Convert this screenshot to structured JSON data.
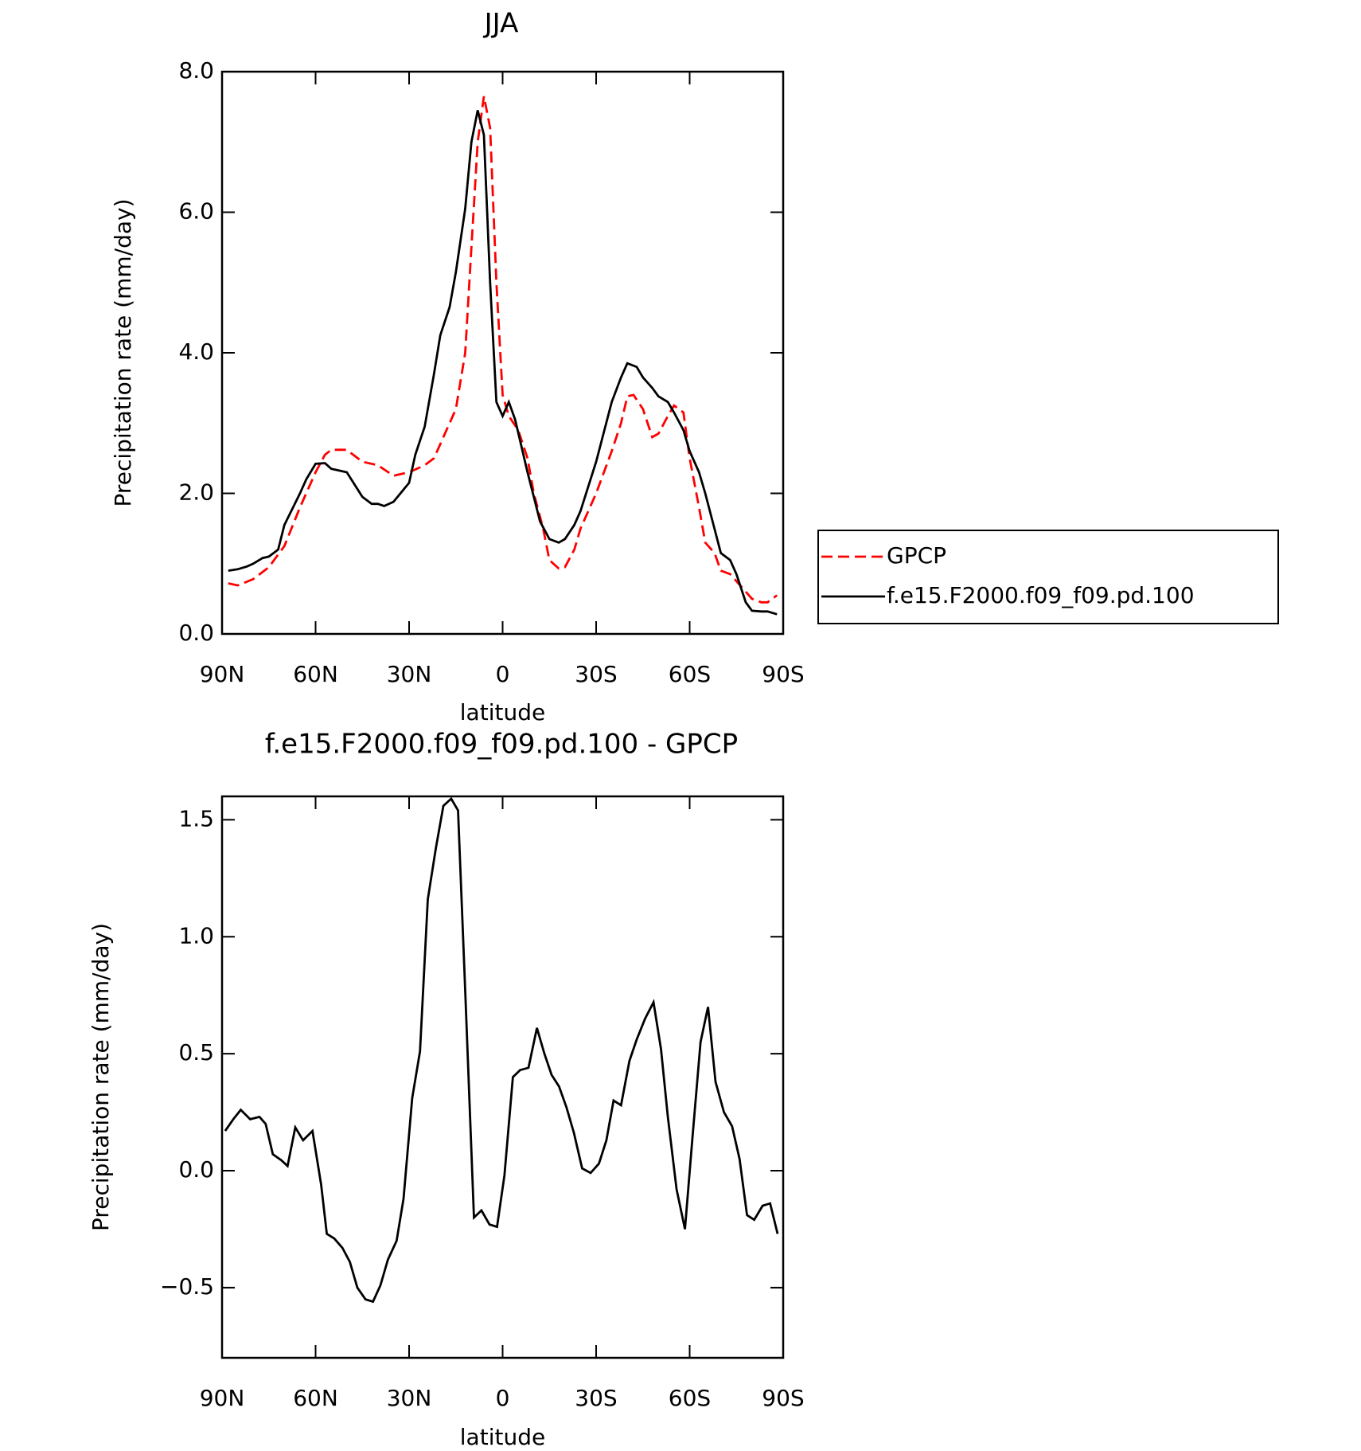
{
  "chart_data": [
    {
      "type": "line",
      "title": "JJA",
      "xlabel": "latitude",
      "ylabel": "Precipitation rate (mm/day)",
      "xlim": [
        90,
        -90
      ],
      "xticks": [
        {
          "value": 90,
          "label": "90N"
        },
        {
          "value": 60,
          "label": "60N"
        },
        {
          "value": 30,
          "label": "30N"
        },
        0,
        {
          "value": -30,
          "label": "30S"
        },
        {
          "value": -60,
          "label": "60S"
        },
        {
          "value": -90,
          "label": "90S"
        }
      ],
      "ylim": [
        0,
        8
      ],
      "yticks": [
        {
          "value": 0,
          "label": "0.0"
        },
        {
          "value": 2,
          "label": "2.0"
        },
        {
          "value": 4,
          "label": "4.0"
        },
        {
          "value": 6,
          "label": "6.0"
        },
        {
          "value": 8,
          "label": "8.0"
        }
      ],
      "legend": "right",
      "series": [
        {
          "name": "GPCP",
          "color": "#ff0000",
          "dashed": true,
          "x": [
            88,
            85,
            80,
            75,
            70,
            65,
            60,
            57,
            55,
            50,
            45,
            40,
            35,
            30,
            25,
            22,
            18,
            15,
            12,
            10,
            8,
            6,
            4,
            2,
            0,
            -2,
            -5,
            -8,
            -10,
            -13,
            -15,
            -18,
            -20,
            -23,
            -25,
            -30,
            -35,
            -38,
            -40,
            -42,
            -45,
            -48,
            -50,
            -53,
            -55,
            -58,
            -60,
            -63,
            -65,
            -68,
            -70,
            -73,
            -75,
            -78,
            -80,
            -83,
            -85,
            -88
          ],
          "values": [
            0.72,
            0.69,
            0.78,
            0.95,
            1.25,
            1.8,
            2.3,
            2.55,
            2.62,
            2.62,
            2.45,
            2.4,
            2.25,
            2.3,
            2.4,
            2.5,
            2.9,
            3.2,
            4.0,
            5.5,
            7.0,
            7.65,
            7.2,
            5.0,
            3.4,
            3.1,
            2.9,
            2.5,
            2.0,
            1.5,
            1.05,
            0.93,
            0.95,
            1.2,
            1.5,
            2.0,
            2.6,
            3.0,
            3.38,
            3.4,
            3.2,
            2.8,
            2.85,
            3.1,
            3.25,
            3.15,
            2.5,
            1.8,
            1.3,
            1.15,
            0.9,
            0.85,
            0.75,
            0.6,
            0.5,
            0.45,
            0.45,
            0.55
          ]
        },
        {
          "name": "f.e15.F2000.f09_f09.pd.100",
          "color": "#000000",
          "dashed": false,
          "x": [
            88,
            85,
            82,
            80,
            77,
            75,
            72,
            70,
            65,
            63,
            60,
            57,
            55,
            52,
            50,
            45,
            42,
            40,
            38,
            35,
            30,
            28,
            25,
            22,
            20,
            17,
            15,
            12,
            10,
            8,
            6,
            4,
            2,
            0,
            -2,
            -4,
            -8,
            -10,
            -12,
            -15,
            -18,
            -20,
            -23,
            -25,
            -30,
            -35,
            -38,
            -40,
            -43,
            -45,
            -48,
            -50,
            -53,
            -55,
            -58,
            -60,
            -63,
            -65,
            -70,
            -73,
            -75,
            -78,
            -80,
            -83,
            -85,
            -88
          ],
          "values": [
            0.9,
            0.92,
            0.96,
            1.0,
            1.08,
            1.1,
            1.2,
            1.55,
            2.0,
            2.2,
            2.42,
            2.43,
            2.35,
            2.32,
            2.3,
            1.95,
            1.85,
            1.85,
            1.82,
            1.88,
            2.15,
            2.55,
            2.95,
            3.7,
            4.25,
            4.65,
            5.15,
            6.05,
            7.0,
            7.45,
            7.1,
            5.0,
            3.3,
            3.1,
            3.3,
            3.05,
            2.3,
            1.95,
            1.6,
            1.35,
            1.3,
            1.35,
            1.55,
            1.75,
            2.45,
            3.3,
            3.65,
            3.85,
            3.8,
            3.65,
            3.5,
            3.38,
            3.3,
            3.15,
            2.9,
            2.6,
            2.3,
            2.0,
            1.15,
            1.05,
            0.85,
            0.45,
            0.33,
            0.32,
            0.32,
            0.28
          ]
        }
      ]
    },
    {
      "type": "line",
      "title": "f.e15.F2000.f09_f09.pd.100 - GPCP",
      "xlabel": "latitude",
      "ylabel": "Precipitation rate (mm/day)",
      "xlim": [
        90,
        -90
      ],
      "xticks": [
        {
          "value": 90,
          "label": "90N"
        },
        {
          "value": 60,
          "label": "60N"
        },
        {
          "value": 30,
          "label": "30N"
        },
        0,
        {
          "value": -30,
          "label": "30S"
        },
        {
          "value": -60,
          "label": "60S"
        },
        {
          "value": -90,
          "label": "90S"
        }
      ],
      "ylim": [
        -0.8,
        1.6
      ],
      "yticks": [
        {
          "value": -0.5,
          "label": "−0.5"
        },
        {
          "value": 0,
          "label": "0.0"
        },
        0.5,
        {
          "value": 1,
          "label": "1.0"
        },
        1.5
      ],
      "series": [
        {
          "color": "#000000",
          "dashed": false,
          "x": [
            89,
            86.4,
            84,
            81,
            78,
            76,
            73.7,
            71,
            69,
            66.5,
            64,
            61,
            58.2,
            56.4,
            54,
            51.4,
            49,
            46.6,
            44,
            41.6,
            39.2,
            36.8,
            34,
            31.8,
            29,
            26.5,
            24,
            21.4,
            19,
            16.5,
            14.3,
            12,
            9.2,
            6.8,
            4.2,
            1.8,
            -0.6,
            -3.3,
            -5.6,
            -8.3,
            -11,
            -13.4,
            -15.7,
            -18.1,
            -20.5,
            -22.9,
            -25.5,
            -28.2,
            -30.9,
            -33.3,
            -35.6,
            -38,
            -40.7,
            -43,
            -45.7,
            -48.4,
            -50.8,
            -53,
            -55.8,
            -58.5,
            -60.9,
            -63.5,
            -65.9,
            -68.3,
            -71,
            -73.6,
            -76,
            -78.4,
            -80.7,
            -83.4,
            -85.8,
            -88.2
          ],
          "values": [
            0.17,
            0.22,
            0.26,
            0.22,
            0.23,
            0.2,
            0.07,
            0.045,
            0.02,
            0.185,
            0.13,
            0.17,
            -0.06,
            -0.27,
            -0.29,
            -0.33,
            -0.39,
            -0.5,
            -0.55,
            -0.56,
            -0.49,
            -0.38,
            -0.3,
            -0.12,
            0.31,
            0.51,
            1.16,
            1.38,
            1.56,
            1.59,
            1.54,
            0.77,
            -0.2,
            -0.17,
            -0.23,
            -0.24,
            -0.02,
            0.4,
            0.43,
            0.44,
            0.61,
            0.5,
            0.41,
            0.36,
            0.27,
            0.16,
            0.01,
            -0.01,
            0.03,
            0.13,
            0.3,
            0.28,
            0.47,
            0.56,
            0.65,
            0.72,
            0.52,
            0.23,
            -0.08,
            -0.25,
            0.14,
            0.55,
            0.7,
            0.38,
            0.25,
            0.19,
            0.05,
            -0.19,
            -0.21,
            -0.15,
            -0.14,
            -0.27
          ]
        }
      ]
    }
  ]
}
